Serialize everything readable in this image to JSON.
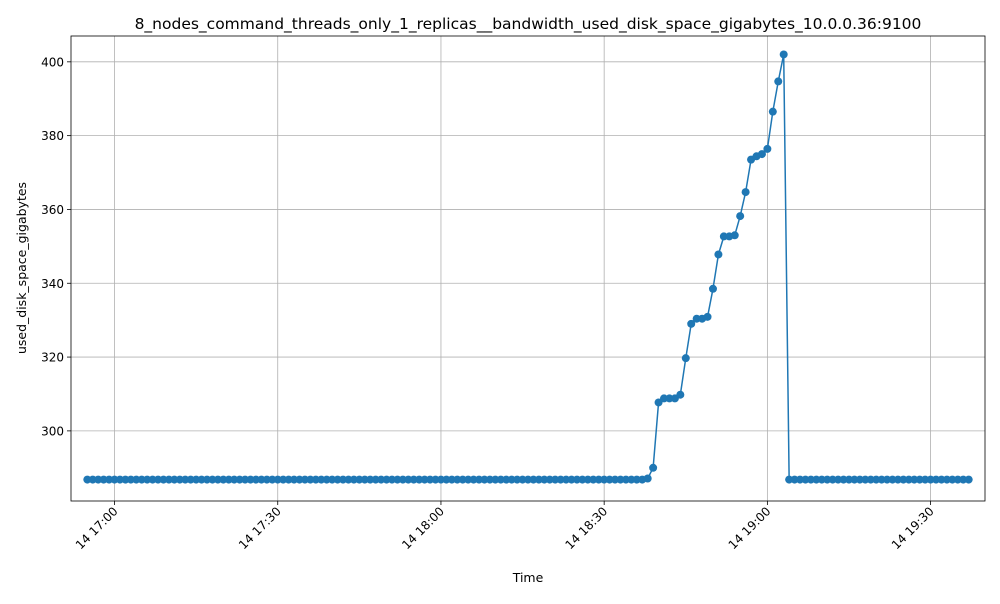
{
  "chart_data": {
    "type": "line",
    "title": "8_nodes_command_threads_only_1_replicas__bandwidth_used_disk_space_gigabytes_10.0.0.36:9100",
    "xlabel": "Time",
    "ylabel": "used_disk_space_gigabytes",
    "x_axis": {
      "kind": "time",
      "start": "14 16:52",
      "end": "14 19:40",
      "ticks": [
        "14 17:00",
        "14 17:30",
        "14 18:00",
        "14 18:30",
        "14 19:00",
        "14 19:30"
      ]
    },
    "ylim": [
      281,
      407
    ],
    "y_ticks": [
      300,
      320,
      340,
      360,
      380,
      400
    ],
    "grid": true,
    "legend": "none",
    "colors": {
      "line": "#1f77b4",
      "marker": "#1f77b4",
      "grid": "#b0b0b0"
    },
    "series": [
      {
        "times": [
          "14 16:55",
          "14 16:56",
          "14 16:57",
          "14 16:58",
          "14 16:59",
          "14 17:00",
          "14 17:01",
          "14 17:02",
          "14 17:03",
          "14 17:04",
          "14 17:05",
          "14 17:06",
          "14 17:07",
          "14 17:08",
          "14 17:09",
          "14 17:10",
          "14 17:11",
          "14 17:12",
          "14 17:13",
          "14 17:14",
          "14 17:15",
          "14 17:16",
          "14 17:17",
          "14 17:18",
          "14 17:19",
          "14 17:20",
          "14 17:21",
          "14 17:22",
          "14 17:23",
          "14 17:24",
          "14 17:25",
          "14 17:26",
          "14 17:27",
          "14 17:28",
          "14 17:29",
          "14 17:30",
          "14 17:31",
          "14 17:32",
          "14 17:33",
          "14 17:34",
          "14 17:35",
          "14 17:36",
          "14 17:37",
          "14 17:38",
          "14 17:39",
          "14 17:40",
          "14 17:41",
          "14 17:42",
          "14 17:43",
          "14 17:44",
          "14 17:45",
          "14 17:46",
          "14 17:47",
          "14 17:48",
          "14 17:49",
          "14 17:50",
          "14 17:51",
          "14 17:52",
          "14 17:53",
          "14 17:54",
          "14 17:55",
          "14 17:56",
          "14 17:57",
          "14 17:58",
          "14 17:59",
          "14 18:00",
          "14 18:01",
          "14 18:02",
          "14 18:03",
          "14 18:04",
          "14 18:05",
          "14 18:06",
          "14 18:07",
          "14 18:08",
          "14 18:09",
          "14 18:10",
          "14 18:11",
          "14 18:12",
          "14 18:13",
          "14 18:14",
          "14 18:15",
          "14 18:16",
          "14 18:17",
          "14 18:18",
          "14 18:19",
          "14 18:20",
          "14 18:21",
          "14 18:22",
          "14 18:23",
          "14 18:24",
          "14 18:25",
          "14 18:26",
          "14 18:27",
          "14 18:28",
          "14 18:29",
          "14 18:30",
          "14 18:31",
          "14 18:32",
          "14 18:33",
          "14 18:34",
          "14 18:35",
          "14 18:36",
          "14 18:37",
          "14 18:38",
          "14 18:39",
          "14 18:40",
          "14 18:41",
          "14 18:42",
          "14 18:43",
          "14 18:44",
          "14 18:45",
          "14 18:46",
          "14 18:47",
          "14 18:48",
          "14 18:49",
          "14 18:50",
          "14 18:51",
          "14 18:52",
          "14 18:53",
          "14 18:54",
          "14 18:55",
          "14 18:56",
          "14 18:57",
          "14 18:58",
          "14 18:59",
          "14 19:00",
          "14 19:01",
          "14 19:02",
          "14 19:03",
          "14 19:04",
          "14 19:05",
          "14 19:06",
          "14 19:07",
          "14 19:08",
          "14 19:09",
          "14 19:10",
          "14 19:11",
          "14 19:12",
          "14 19:13",
          "14 19:14",
          "14 19:15",
          "14 19:16",
          "14 19:17",
          "14 19:18",
          "14 19:19",
          "14 19:20",
          "14 19:21",
          "14 19:22",
          "14 19:23",
          "14 19:24",
          "14 19:25",
          "14 19:26",
          "14 19:27",
          "14 19:28",
          "14 19:29",
          "14 19:30",
          "14 19:31",
          "14 19:32",
          "14 19:33",
          "14 19:34",
          "14 19:35",
          "14 19:36",
          "14 19:37"
        ],
        "values": [
          286.8,
          286.8,
          286.8,
          286.8,
          286.8,
          286.8,
          286.8,
          286.8,
          286.8,
          286.8,
          286.8,
          286.8,
          286.8,
          286.8,
          286.8,
          286.8,
          286.8,
          286.8,
          286.8,
          286.8,
          286.8,
          286.8,
          286.8,
          286.8,
          286.8,
          286.8,
          286.8,
          286.8,
          286.8,
          286.8,
          286.8,
          286.8,
          286.8,
          286.8,
          286.8,
          286.8,
          286.8,
          286.8,
          286.8,
          286.8,
          286.8,
          286.8,
          286.8,
          286.8,
          286.8,
          286.8,
          286.8,
          286.8,
          286.8,
          286.8,
          286.8,
          286.8,
          286.8,
          286.8,
          286.8,
          286.8,
          286.8,
          286.8,
          286.8,
          286.8,
          286.8,
          286.8,
          286.8,
          286.8,
          286.8,
          286.8,
          286.8,
          286.8,
          286.8,
          286.8,
          286.8,
          286.8,
          286.8,
          286.8,
          286.8,
          286.8,
          286.8,
          286.8,
          286.8,
          286.8,
          286.8,
          286.8,
          286.8,
          286.8,
          286.8,
          286.8,
          286.8,
          286.8,
          286.8,
          286.8,
          286.8,
          286.8,
          286.8,
          286.8,
          286.8,
          286.8,
          286.8,
          286.8,
          286.8,
          286.8,
          286.8,
          286.8,
          286.8,
          287.1,
          290.0,
          307.7,
          308.8,
          308.8,
          308.8,
          309.8,
          319.7,
          329.0,
          330.4,
          330.4,
          330.9,
          338.5,
          347.8,
          352.7,
          352.7,
          353.0,
          358.2,
          364.7,
          373.5,
          374.4,
          375.0,
          376.4,
          386.5,
          394.7,
          402.0,
          286.8,
          286.8,
          286.8,
          286.8,
          286.8,
          286.8,
          286.8,
          286.8,
          286.8,
          286.8,
          286.8,
          286.8,
          286.8,
          286.8,
          286.8,
          286.8,
          286.8,
          286.8,
          286.8,
          286.8,
          286.8,
          286.8,
          286.8,
          286.8,
          286.8,
          286.8,
          286.8,
          286.8,
          286.8,
          286.8,
          286.8,
          286.8,
          286.8,
          286.8
        ]
      }
    ]
  }
}
